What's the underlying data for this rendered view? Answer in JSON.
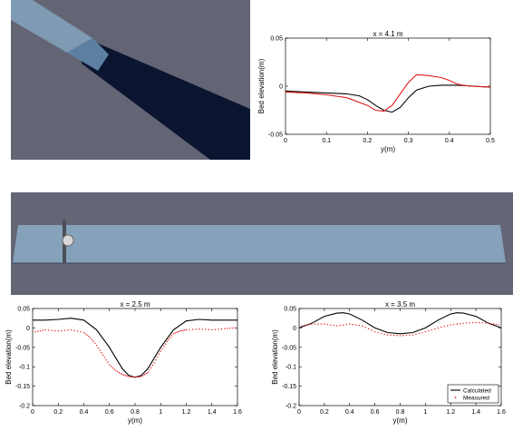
{
  "renders": {
    "top_flume": {
      "background": "#636474",
      "channel_color": "#0b1530",
      "water_color": "#7f9bb3"
    },
    "bottom_flume": {
      "background": "#646575",
      "water_color": "#86a2bb"
    }
  },
  "legend": {
    "calculated": "Calculated",
    "measured": "Measured"
  },
  "chart_data": [
    {
      "type": "line",
      "title": "x = 4.1 m",
      "xlabel": "y(m)",
      "ylabel": "Bed elevation(m)",
      "xlim": [
        0,
        0.5
      ],
      "ylim": [
        -0.05,
        0.05
      ],
      "xticks": [
        0,
        0.1,
        0.2,
        0.3,
        0.4,
        0.5
      ],
      "yticks": [
        -0.05,
        0,
        0.05
      ],
      "xtick_labels": [
        "0",
        "0.1",
        "0.2",
        "0.3",
        "0.4",
        "0.5"
      ],
      "ytick_labels": [
        "-0.05",
        "0",
        "0.05"
      ],
      "series": [
        {
          "color": "#000000",
          "style": "line",
          "x": [
            0,
            0.05,
            0.1,
            0.15,
            0.18,
            0.2,
            0.22,
            0.24,
            0.26,
            0.28,
            0.3,
            0.32,
            0.35,
            0.38,
            0.42,
            0.46,
            0.5
          ],
          "y": [
            -0.005,
            -0.006,
            -0.007,
            -0.008,
            -0.01,
            -0.014,
            -0.02,
            -0.025,
            -0.027,
            -0.022,
            -0.012,
            -0.004,
            0.0,
            0.001,
            0.001,
            0.0,
            -0.001
          ]
        },
        {
          "color": "#e31a1c",
          "style": "line",
          "x": [
            0,
            0.05,
            0.1,
            0.15,
            0.2,
            0.22,
            0.24,
            0.26,
            0.28,
            0.3,
            0.32,
            0.35,
            0.38,
            0.4,
            0.42,
            0.45,
            0.5
          ],
          "y": [
            -0.006,
            -0.007,
            -0.009,
            -0.012,
            -0.02,
            -0.025,
            -0.026,
            -0.02,
            -0.008,
            0.004,
            0.012,
            0.011,
            0.009,
            0.006,
            0.002,
            0.0,
            -0.001
          ]
        }
      ]
    },
    {
      "type": "line",
      "title": "x = 2.5 m",
      "xlabel": "y(m)",
      "ylabel": "Bed elevation(m)",
      "xlim": [
        0,
        1.6
      ],
      "ylim": [
        -0.2,
        0.05
      ],
      "xticks": [
        0,
        0.2,
        0.4,
        0.6,
        0.8,
        1,
        1.2,
        1.4,
        1.6
      ],
      "yticks": [
        -0.2,
        -0.15,
        -0.1,
        -0.05,
        0,
        0.05
      ],
      "xtick_labels": [
        "0",
        "0.2",
        "0.4",
        "0.6",
        "0.8",
        "1",
        "1.2",
        "1.4",
        "1.6"
      ],
      "ytick_labels": [
        "-0.2",
        "-0.15",
        "-0.1",
        "-0.05",
        "0",
        "0.05"
      ],
      "series": [
        {
          "color": "#000000",
          "style": "line",
          "x": [
            0,
            0.1,
            0.2,
            0.3,
            0.4,
            0.5,
            0.6,
            0.7,
            0.75,
            0.8,
            0.85,
            0.9,
            1.0,
            1.1,
            1.2,
            1.3,
            1.4,
            1.5,
            1.6
          ],
          "y": [
            0.02,
            0.02,
            0.022,
            0.025,
            0.02,
            -0.005,
            -0.05,
            -0.105,
            -0.122,
            -0.127,
            -0.122,
            -0.105,
            -0.05,
            -0.005,
            0.018,
            0.022,
            0.02,
            0.02,
            0.02
          ]
        },
        {
          "color": "#e31a1c",
          "style": "dotted",
          "x": [
            0.02,
            0.1,
            0.2,
            0.3,
            0.4,
            0.45,
            0.5,
            0.55,
            0.6,
            0.65,
            0.7,
            0.75,
            0.8,
            0.85,
            0.9,
            0.95,
            1.0,
            1.05,
            1.1,
            1.15,
            1.2,
            1.3,
            1.4,
            1.5,
            1.58
          ],
          "y": [
            -0.01,
            -0.005,
            -0.008,
            -0.005,
            -0.012,
            -0.025,
            -0.045,
            -0.07,
            -0.095,
            -0.11,
            -0.12,
            -0.125,
            -0.127,
            -0.125,
            -0.115,
            -0.09,
            -0.06,
            -0.035,
            -0.015,
            -0.008,
            -0.005,
            -0.003,
            -0.005,
            -0.002,
            0.0
          ]
        }
      ]
    },
    {
      "type": "line",
      "title": "x = 3.5 m",
      "xlabel": "y(m)",
      "ylabel": "Bed elevation(m)",
      "xlim": [
        0,
        1.6
      ],
      "ylim": [
        -0.2,
        0.05
      ],
      "xticks": [
        0,
        0.2,
        0.4,
        0.6,
        0.8,
        1,
        1.2,
        1.4,
        1.6
      ],
      "yticks": [
        -0.2,
        -0.15,
        -0.1,
        -0.05,
        0,
        0.05
      ],
      "xtick_labels": [
        "0",
        "0.2",
        "0.4",
        "0.6",
        "0.8",
        "1",
        "1.2",
        "1.4",
        "1.6"
      ],
      "ytick_labels": [
        "-0.2",
        "-0.15",
        "-0.1",
        "-0.05",
        "0",
        "0.05"
      ],
      "legend_position": "bottom-right",
      "series": [
        {
          "name": "Calculated",
          "color": "#000000",
          "style": "line",
          "x": [
            0,
            0.1,
            0.2,
            0.3,
            0.35,
            0.4,
            0.5,
            0.6,
            0.7,
            0.8,
            0.9,
            1.0,
            1.1,
            1.2,
            1.25,
            1.3,
            1.4,
            1.5,
            1.6
          ],
          "y": [
            0.0,
            0.012,
            0.03,
            0.038,
            0.039,
            0.036,
            0.02,
            0.0,
            -0.012,
            -0.015,
            -0.012,
            0.0,
            0.02,
            0.036,
            0.039,
            0.038,
            0.03,
            0.012,
            0.0
          ]
        },
        {
          "name": "Measured",
          "color": "#e31a1c",
          "style": "dotted",
          "x": [
            0.02,
            0.1,
            0.2,
            0.3,
            0.4,
            0.5,
            0.6,
            0.7,
            0.8,
            0.9,
            1.0,
            1.1,
            1.2,
            1.3,
            1.4,
            1.5,
            1.58
          ],
          "y": [
            0.005,
            0.01,
            0.01,
            0.005,
            0.01,
            0.005,
            -0.01,
            -0.018,
            -0.02,
            -0.018,
            -0.01,
            0.0,
            0.008,
            0.012,
            0.014,
            0.012,
            0.008
          ]
        }
      ]
    }
  ]
}
